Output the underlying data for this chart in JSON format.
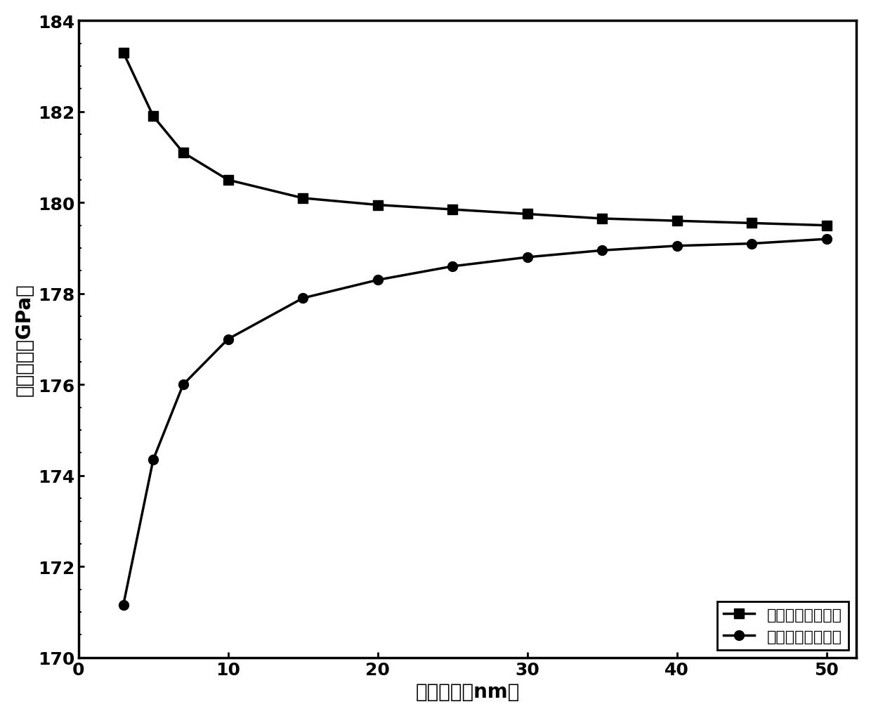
{
  "zigzag_x": [
    3,
    5,
    7,
    10,
    15,
    20,
    25,
    30,
    35,
    40,
    45,
    50
  ],
  "zigzag_y": [
    183.3,
    181.9,
    181.1,
    180.5,
    180.1,
    179.95,
    179.85,
    179.75,
    179.65,
    179.6,
    179.55,
    179.5
  ],
  "armchair_x": [
    3,
    5,
    7,
    10,
    15,
    20,
    25,
    30,
    35,
    40,
    45,
    50
  ],
  "armchair_y": [
    171.15,
    174.35,
    176.0,
    177.0,
    177.9,
    178.3,
    178.6,
    178.8,
    178.95,
    179.05,
    179.1,
    179.2
  ],
  "xlabel": "边界长度（nm）",
  "ylabel": "弹性模量（GPa）",
  "legend_zigzag": "沿閔齿型边界拉伸",
  "legend_armchair": "沿扶手型边界拉伸",
  "xlim": [
    0,
    52
  ],
  "ylim": [
    170,
    184
  ],
  "xticks": [
    0,
    10,
    20,
    30,
    40,
    50
  ],
  "yticks": [
    170,
    172,
    174,
    176,
    178,
    180,
    182,
    184
  ],
  "line_color": "#000000",
  "background_color": "#ffffff",
  "title_fontsize": 18,
  "label_fontsize": 20,
  "tick_fontsize": 18,
  "legend_fontsize": 16
}
